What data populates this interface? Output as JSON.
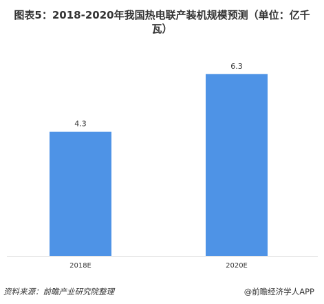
{
  "chart_data": {
    "type": "bar",
    "title_line1": "图表5：2018-2020年我国热电联产装机规模预测（单位：亿千",
    "title_line2": "瓦）",
    "categories": [
      "2018E",
      "2020E"
    ],
    "values": [
      4.3,
      6.3
    ],
    "value_labels": [
      "4.3",
      "6.3"
    ],
    "bar_color": "#4E93E6",
    "ylim": [
      0,
      7.2
    ],
    "grid": false,
    "legend": "none"
  },
  "footer": {
    "source": "资料来源：前瞻产业研究院整理",
    "watermark": "@前瞻经济学人APP"
  }
}
